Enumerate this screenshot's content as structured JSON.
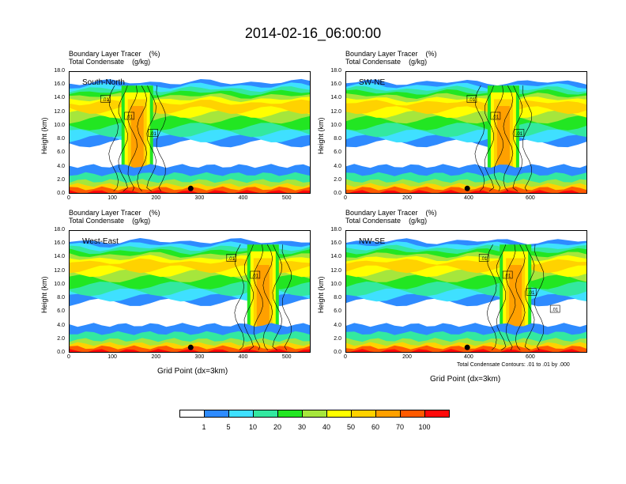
{
  "title": "2014-02-16_06:00:00",
  "panel_title_line1": "Boundary Layer Tracer",
  "panel_unit_line1": "(%)",
  "panel_title_line2": "Total Condensate",
  "panel_unit_line2": "(g/kg)",
  "y_axis_label": "Height (km)",
  "x_axis_label": "Grid Point (dx=3km)",
  "contour_note": "Total Condensate Contours: .01 to .01 by .000",
  "colorbar": {
    "colors": [
      "#ffffff",
      "#2e8bff",
      "#3fe0ff",
      "#33e8a0",
      "#22e622",
      "#a6e63c",
      "#ffff00",
      "#ffd200",
      "#ffa000",
      "#ff5a00",
      "#ff0a0a"
    ],
    "labels": [
      "1",
      "5",
      "10",
      "20",
      "30",
      "40",
      "50",
      "60",
      "70",
      "100"
    ]
  },
  "chart_data": [
    {
      "type": "heatmap",
      "label": "South-North",
      "title": "Boundary Layer Tracer (%) / Total Condensate (g/kg)",
      "ylabel": "Height (km)",
      "xlabel": "",
      "xlim": [
        0,
        555
      ],
      "ylim": [
        0,
        18
      ],
      "xticks": [
        "0",
        "100",
        "200",
        "300",
        "400",
        "500"
      ],
      "xtick_values": [
        0,
        100,
        200,
        300,
        400,
        500
      ],
      "yticks": [
        "0.0",
        "2.0",
        "4.0",
        "6.0",
        "8.0",
        "10.0",
        "12.0",
        "14.0",
        "16.0",
        "18.0"
      ],
      "contour_labels": [
        ".01",
        ".01",
        ".01"
      ],
      "marker_x": 278
    },
    {
      "type": "heatmap",
      "label": "SW-NE",
      "title": "Boundary Layer Tracer (%) / Total Condensate (g/kg)",
      "ylabel": "Height (km)",
      "xlabel": "",
      "xlim": [
        0,
        785
      ],
      "ylim": [
        0,
        18
      ],
      "xticks": [
        "0",
        "200",
        "400",
        "600"
      ],
      "xtick_values": [
        0,
        200,
        400,
        600
      ],
      "yticks": [
        "0.0",
        "2.0",
        "4.0",
        "6.0",
        "8.0",
        "10.0",
        "12.0",
        "14.0",
        "16.0",
        "18.0"
      ],
      "contour_labels": [
        ".01",
        ".01",
        ".01"
      ],
      "marker_x": 393
    },
    {
      "type": "heatmap",
      "label": "West-East",
      "title": "Boundary Layer Tracer (%) / Total Condensate (g/kg)",
      "ylabel": "Height (km)",
      "xlabel": "Grid Point (dx=3km)",
      "xlim": [
        0,
        555
      ],
      "ylim": [
        0,
        18
      ],
      "xticks": [
        "0",
        "100",
        "200",
        "300",
        "400",
        "500"
      ],
      "xtick_values": [
        0,
        100,
        200,
        300,
        400,
        500
      ],
      "yticks": [
        "0.0",
        "2.0",
        "4.0",
        "6.0",
        "8.0",
        "10.0",
        "12.0",
        "14.0",
        "16.0",
        "18.0"
      ],
      "contour_labels": [
        ".01",
        ".01"
      ],
      "marker_x": 278
    },
    {
      "type": "heatmap",
      "label": "NW-SE",
      "title": "Boundary Layer Tracer (%) / Total Condensate (g/kg)",
      "ylabel": "Height (km)",
      "xlabel": "Grid Point (dx=3km)",
      "xlim": [
        0,
        785
      ],
      "ylim": [
        0,
        18
      ],
      "xticks": [
        "0",
        "200",
        "400",
        "600"
      ],
      "xtick_values": [
        0,
        200,
        400,
        600
      ],
      "yticks": [
        "0.0",
        "2.0",
        "4.0",
        "6.0",
        "8.0",
        "10.0",
        "12.0",
        "14.0",
        "16.0",
        "18.0"
      ],
      "contour_labels": [
        ".01",
        ".01",
        ".01",
        ".01"
      ],
      "marker_x": 393
    }
  ]
}
